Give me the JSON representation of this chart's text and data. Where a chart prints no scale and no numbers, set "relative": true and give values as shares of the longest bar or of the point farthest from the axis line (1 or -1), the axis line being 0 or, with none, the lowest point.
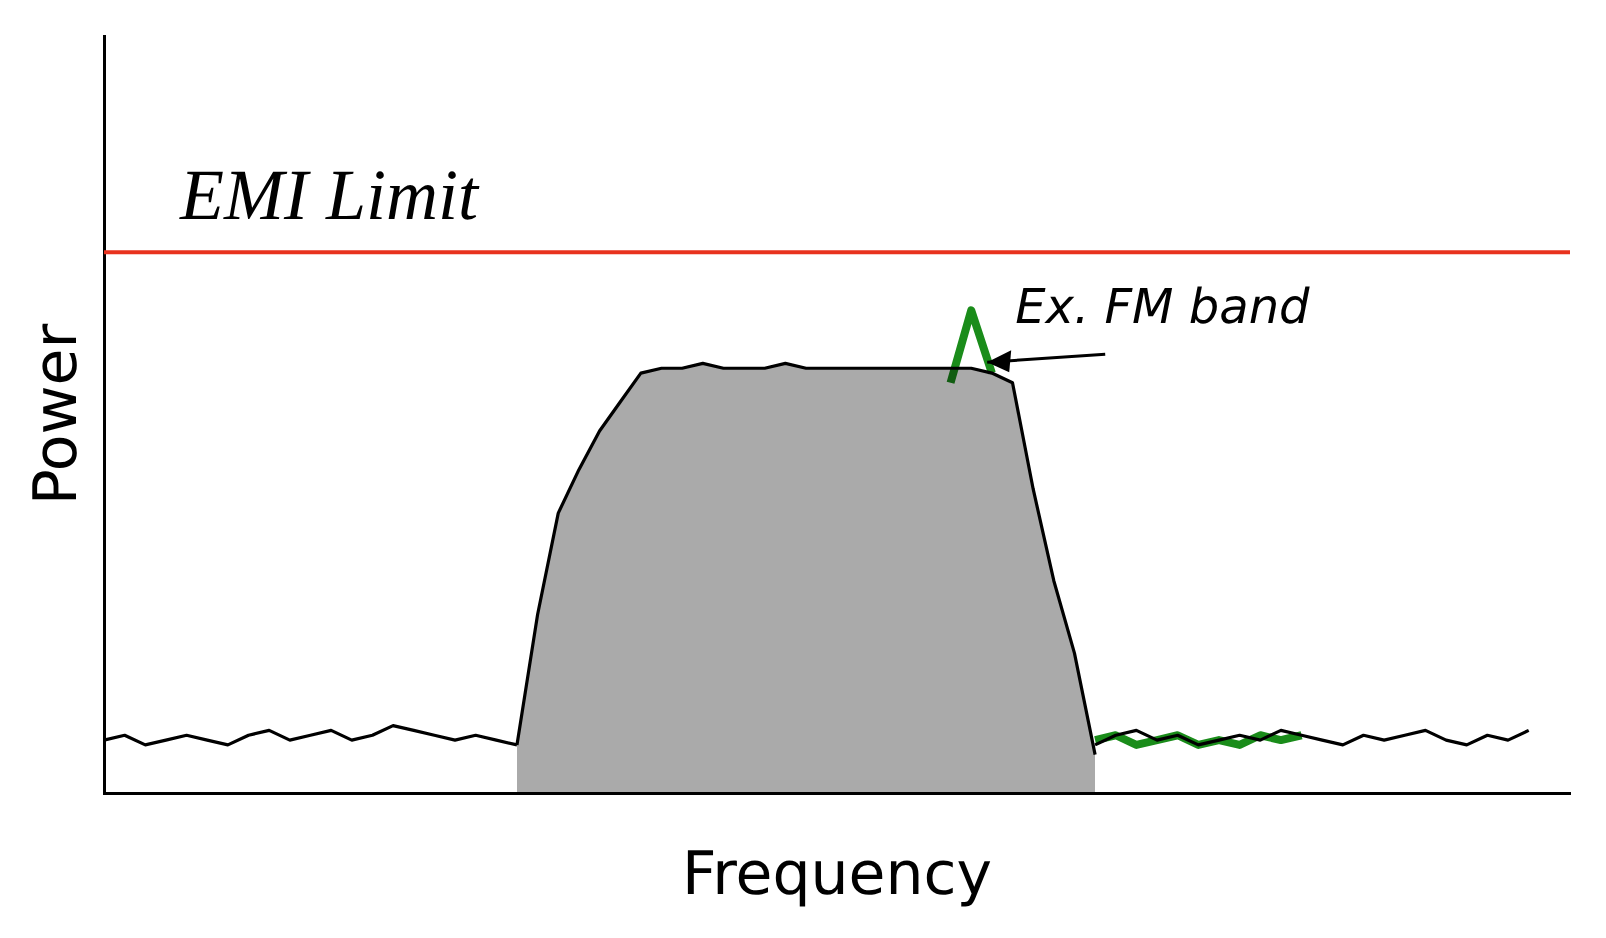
{
  "chart_data": {
    "type": "line",
    "relative": true,
    "xlabel": "Frequency",
    "ylabel": "Power",
    "legend": false,
    "grid": false,
    "marker": "none",
    "categories": [
      null,
      null,
      null,
      null,
      null,
      null,
      null,
      null,
      null,
      null,
      null,
      null,
      null,
      null,
      null,
      null,
      null,
      null,
      null,
      null,
      null,
      null,
      null,
      null,
      null,
      null,
      null,
      null,
      null,
      null,
      null,
      null,
      null,
      null,
      null,
      null,
      null,
      null,
      null,
      null,
      null,
      null,
      null,
      null,
      null,
      null,
      null,
      null,
      null,
      null,
      null,
      null,
      null,
      null,
      null,
      null,
      null,
      null,
      null,
      null,
      null,
      null,
      null,
      null,
      null,
      null,
      null,
      null,
      null,
      null,
      null,
      null
    ],
    "series": [
      {
        "color": "#000000",
        "values": [
          0.11,
          0.12,
          0.1,
          0.11,
          0.12,
          0.11,
          0.1,
          0.12,
          0.13,
          0.11,
          0.12,
          0.13,
          0.11,
          0.12,
          0.14,
          0.13,
          0.12,
          0.11,
          0.12,
          0.11,
          0.1,
          null,
          null,
          null,
          null,
          null,
          null,
          null,
          null,
          null,
          null,
          null,
          null,
          null,
          null,
          null,
          null,
          null,
          null,
          null,
          null,
          null,
          null,
          null,
          null,
          null,
          null,
          null,
          0.1,
          0.12,
          0.13,
          0.11,
          0.12,
          0.1,
          0.11,
          0.12,
          0.11,
          0.13,
          0.12,
          0.11,
          0.1,
          0.12,
          0.11,
          0.12,
          0.13,
          0.11,
          0.1,
          0.12,
          0.11,
          0.13,
          null,
          null
        ]
      },
      {
        "type": "area",
        "color": "#000000",
        "values": [
          null,
          null,
          null,
          null,
          null,
          null,
          null,
          null,
          null,
          null,
          null,
          null,
          null,
          null,
          null,
          null,
          null,
          null,
          null,
          null,
          0.1,
          0.37,
          0.58,
          0.67,
          0.75,
          0.81,
          0.87,
          0.88,
          0.88,
          0.89,
          0.88,
          0.88,
          0.88,
          0.89,
          0.88,
          0.88,
          0.88,
          0.88,
          0.88,
          0.88,
          0.88,
          0.88,
          0.88,
          0.87,
          0.85,
          0.63,
          0.44,
          0.29,
          0.08,
          null,
          null,
          null,
          null,
          null,
          null,
          null,
          null,
          null,
          null,
          null,
          null,
          null,
          null,
          null,
          null,
          null,
          null,
          null,
          null,
          null,
          null,
          null
        ]
      },
      {
        "color": "#1a8c1a",
        "values": [
          null,
          null,
          null,
          null,
          null,
          null,
          null,
          null,
          null,
          null,
          null,
          null,
          null,
          null,
          null,
          null,
          null,
          null,
          null,
          null,
          null,
          null,
          null,
          null,
          null,
          null,
          null,
          null,
          null,
          null,
          null,
          null,
          null,
          null,
          null,
          null,
          null,
          null,
          null,
          null,
          null,
          0.85,
          1.0,
          0.87,
          null,
          null,
          null,
          null,
          0.11,
          0.12,
          0.1,
          0.11,
          0.12,
          0.1,
          0.11,
          0.1,
          0.12,
          0.11,
          0.12,
          null,
          null,
          null,
          null,
          null,
          null,
          null,
          null,
          null,
          null,
          null,
          null,
          null
        ]
      }
    ],
    "ref_lines": [
      {
        "axis": "y",
        "value": 1.12,
        "label": "EMI Limit",
        "color": "#e8321e"
      }
    ],
    "annotations": [
      "Ex. FM band"
    ]
  }
}
